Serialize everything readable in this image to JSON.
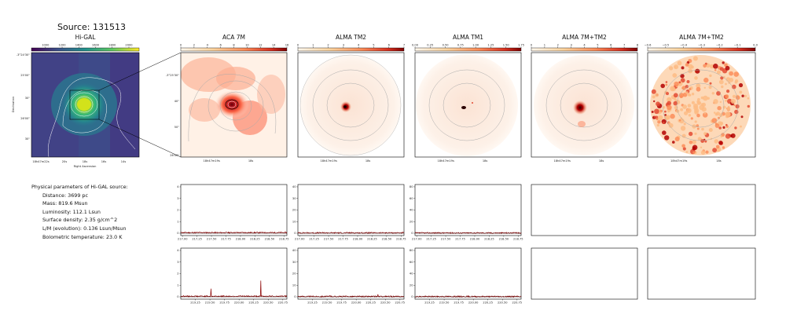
{
  "title": "Source: 131513",
  "panels": [
    {
      "title": "Hi-GAL",
      "cbar_ticks": [
        "1000",
        "1200",
        "1400",
        "1600",
        "1800",
        "2000"
      ],
      "cmap": "viridis"
    },
    {
      "title": "ACA 7M",
      "cbar_ticks": [
        "0",
        "2",
        "4",
        "6",
        "8",
        "10",
        "12",
        "14",
        "16"
      ],
      "cmap": "OrRd"
    },
    {
      "title": "ALMA TM2",
      "cbar_ticks": [
        "0",
        "1",
        "2",
        "3",
        "4",
        "5",
        "6",
        "7"
      ],
      "cmap": "OrRd"
    },
    {
      "title": "ALMA TM1",
      "cbar_ticks": [
        "0.00",
        "0.25",
        "0.50",
        "0.75",
        "1.00",
        "1.25",
        "1.50",
        "1.75"
      ],
      "cmap": "OrRd"
    },
    {
      "title": "ALMA 7M+TM2",
      "cbar_ticks": [
        "0",
        "1",
        "2",
        "3",
        "4",
        "5",
        "6",
        "7",
        "8"
      ],
      "cmap": "OrRd"
    },
    {
      "title": "ALMA 7M+TM2",
      "cbar_ticks": [
        "−0.6",
        "−0.5",
        "−0.4",
        "−0.3",
        "−0.2",
        "−0.1",
        "0.0"
      ],
      "cmap": "OrRd"
    }
  ],
  "higal": {
    "ylabel": "Declination",
    "xlabel": "Right Ascension",
    "yticks": [
      "-3°24'30\"",
      "25'00\"",
      "30\"",
      "26'00\"",
      "30\""
    ],
    "xticks": [
      "18h47m22s",
      "20s",
      "18s",
      "16s",
      "14s"
    ]
  },
  "aca": {
    "yticks": [
      "-3°25'30\"",
      "40\"",
      "50\"",
      "26'00\""
    ],
    "xticks": [
      "18h47m19s",
      "18s"
    ]
  },
  "alma_xticks": [
    "18h47m19s",
    "18s"
  ],
  "params": {
    "header": "Physical parameters of Hi-GAL source:",
    "lines": [
      "Distance: 3699 pc",
      "Mass: 819.6 Msun",
      "Luminosity: 112.1 Lsun",
      "Surface density: 2.35 g/cm^2",
      "L/M (evolution): 0.136 Lsun/Msun",
      "Bolometric temperature: 23.0 K"
    ]
  },
  "chart_data": [
    {
      "type": "line",
      "panel": "ACA 7M spw row 1",
      "x_ticks": [
        "217.00",
        "217.25",
        "217.50",
        "217.75",
        "218.00",
        "218.25",
        "218.50",
        "218.75"
      ],
      "xlim": [
        216.97,
        218.8
      ],
      "y_ticks": [
        "0",
        "1",
        "2",
        "3",
        "4"
      ],
      "ylim": [
        -0.2,
        4.2
      ],
      "x": [
        217.0,
        217.5,
        218.0,
        218.5,
        218.75
      ],
      "y": [
        0.05,
        0.02,
        0.04,
        0.03,
        0.05
      ],
      "color": "#8b0000"
    },
    {
      "type": "line",
      "panel": "ALMA TM2 spw row 1",
      "x_ticks": [
        "217.00",
        "217.25",
        "217.50",
        "217.75",
        "218.00",
        "218.25",
        "218.50",
        "218.75"
      ],
      "xlim": [
        216.97,
        218.8
      ],
      "y_ticks": [
        "0",
        "10",
        "20",
        "30",
        "40"
      ],
      "ylim": [
        -2,
        42
      ],
      "x": [
        217.0,
        217.5,
        218.0,
        218.5,
        218.75
      ],
      "y": [
        0.3,
        0.2,
        0.4,
        0.3,
        0.2
      ],
      "color": "#8b0000"
    },
    {
      "type": "line",
      "panel": "ALMA TM1 spw row 1",
      "x_ticks": [
        "217.00",
        "217.25",
        "217.50",
        "217.75",
        "218.00",
        "218.25",
        "218.50",
        "218.75"
      ],
      "xlim": [
        216.97,
        218.8
      ],
      "y_ticks": [
        "0",
        "20",
        "40",
        "60",
        "80"
      ],
      "ylim": [
        -4,
        84
      ],
      "x": [
        217.0,
        217.5,
        218.0,
        218.5,
        218.75
      ],
      "y": [
        0.5,
        0.4,
        0.6,
        0.5,
        0.4
      ],
      "color": "#8b0000"
    },
    {
      "type": "line",
      "panel": "ACA 7M spw row 2",
      "x_ticks": [
        "219.25",
        "219.50",
        "219.75",
        "220.00",
        "220.25",
        "220.50",
        "220.75"
      ],
      "xlim": [
        219.0,
        220.82
      ],
      "y_ticks": [
        "0",
        "1",
        "2",
        "3",
        "4"
      ],
      "ylim": [
        -0.2,
        4.2
      ],
      "x": [
        219.0,
        219.5,
        219.52,
        219.54,
        220.0,
        220.36,
        220.37,
        220.38,
        220.82
      ],
      "y": [
        0.05,
        0.05,
        0.7,
        0.05,
        0.05,
        0.05,
        1.4,
        0.05,
        0.05
      ],
      "color": "#8b0000"
    },
    {
      "type": "line",
      "panel": "ALMA TM2 spw row 2",
      "x_ticks": [
        "219.25",
        "219.50",
        "219.75",
        "220.00",
        "220.25",
        "220.50",
        "220.75"
      ],
      "xlim": [
        219.0,
        220.82
      ],
      "y_ticks": [
        "0",
        "10",
        "20",
        "30",
        "40"
      ],
      "ylim": [
        -2,
        42
      ],
      "x": [
        219.0,
        219.5,
        219.55,
        219.6,
        220.36,
        220.37,
        220.38,
        220.82
      ],
      "y": [
        0.3,
        0.3,
        1.2,
        0.3,
        0.3,
        2.2,
        0.3,
        0.3
      ],
      "color": "#8b0000"
    },
    {
      "type": "line",
      "panel": "ALMA TM1 spw row 2",
      "x_ticks": [
        "219.25",
        "219.50",
        "219.75",
        "220.00",
        "220.25",
        "220.50",
        "220.75"
      ],
      "xlim": [
        219.0,
        220.82
      ],
      "y_ticks": [
        "0",
        "20",
        "40",
        "60",
        "80"
      ],
      "ylim": [
        -4,
        84
      ],
      "x": [
        219.0,
        219.5,
        220.0,
        220.36,
        220.37,
        220.38,
        220.82
      ],
      "y": [
        0.5,
        0.5,
        0.5,
        0.5,
        1.6,
        0.5,
        0.5
      ],
      "color": "#8b0000"
    }
  ]
}
